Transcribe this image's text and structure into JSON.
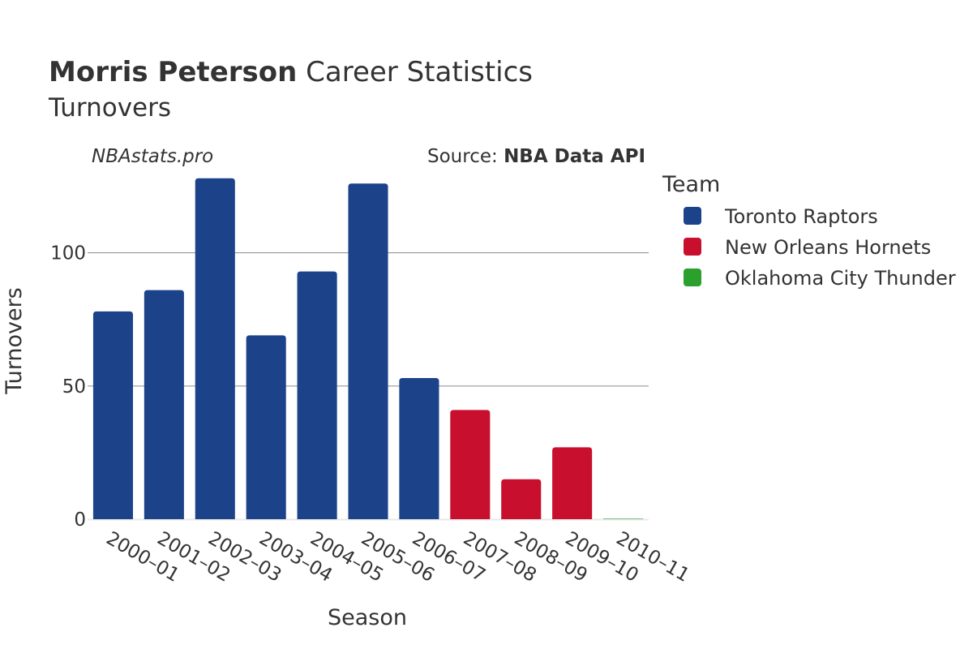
{
  "title": {
    "bold": "Morris Peterson",
    "rest": " Career Statistics",
    "subtitle": "Turnovers"
  },
  "watermark": "NBAstats.pro",
  "source": {
    "prefix": "Source: ",
    "name": "NBA Data API"
  },
  "legend": {
    "title": "Team"
  },
  "chart_data": {
    "type": "bar",
    "title": "Morris Peterson Career Statistics",
    "subtitle": "Turnovers",
    "xlabel": "Season",
    "ylabel": "Turnovers",
    "ylim": [
      0,
      134
    ],
    "yticks": [
      0,
      50,
      100
    ],
    "grid": true,
    "legend_position": "right",
    "categories": [
      "2000–01",
      "2001–02",
      "2002–03",
      "2003–04",
      "2004–05",
      "2005–06",
      "2006–07",
      "2007–08",
      "2008–09",
      "2009–10",
      "2010–11"
    ],
    "series": [
      {
        "name": "Toronto Raptors",
        "color": "#1c4289",
        "values": [
          78,
          86,
          128,
          69,
          93,
          126,
          53,
          null,
          null,
          null,
          null
        ]
      },
      {
        "name": "New Orleans Hornets",
        "color": "#c8102e",
        "values": [
          null,
          null,
          null,
          null,
          null,
          null,
          null,
          41,
          15,
          27,
          null
        ]
      },
      {
        "name": "Oklahoma City Thunder",
        "color": "#2ca02c",
        "values": [
          null,
          null,
          null,
          null,
          null,
          null,
          null,
          null,
          null,
          null,
          0
        ]
      }
    ]
  }
}
